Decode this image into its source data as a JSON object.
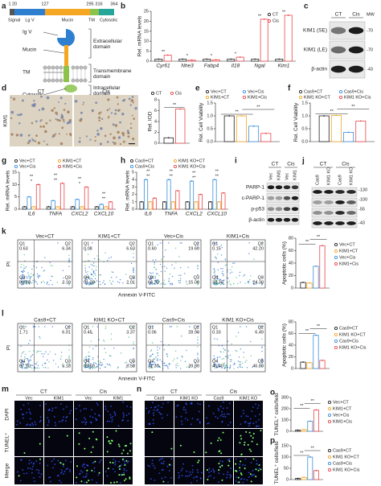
{
  "panels": {
    "a": {
      "label": "a",
      "positions": [
        1,
        20,
        127,
        295,
        316,
        364
      ],
      "segments": [
        "Signal",
        "Lg V",
        "Mucin",
        "TM",
        "Cytosolic"
      ],
      "parts": [
        "Ig V",
        "Mucin",
        "TM",
        "Cytosolic"
      ],
      "domains": [
        "Extracellular domain",
        "Transmembrane domain",
        "Intracellular domain"
      ]
    },
    "b": {
      "label": "b",
      "type": "bar",
      "ylabel": "Rel. mRNA levels",
      "categories": [
        "Cyr61",
        "Nhe3",
        "Fabp4",
        "Il18",
        "Ngal",
        "Kim1"
      ],
      "series": [
        {
          "name": "CT",
          "color": "#222222",
          "values": [
            1,
            1,
            1,
            1,
            1,
            1
          ]
        },
        {
          "name": "Cis",
          "color": "#e8474b",
          "values": [
            3,
            0.5,
            0.7,
            2,
            21,
            23
          ]
        }
      ],
      "ylim": [
        0,
        25
      ],
      "yticks": [
        0,
        5,
        10,
        15,
        20,
        25
      ],
      "annotations": [
        "**",
        "*",
        "*",
        "*",
        "**",
        "**"
      ]
    },
    "c": {
      "label": "c",
      "groups": [
        "CT",
        "Cis"
      ],
      "mw_title": "MW",
      "rows": [
        "KIM1 (SE)",
        "KIM1 (LE)",
        "β-actin"
      ],
      "mw": [
        "-70",
        "-70",
        "-43"
      ]
    },
    "d": {
      "label": "d",
      "images": [
        "CT",
        "Cis"
      ],
      "stain": "KIM1",
      "type": "bar",
      "ylabel": "Rel. IOD",
      "series": [
        {
          "name": "CT",
          "color": "#222222",
          "values": [
            1
          ]
        },
        {
          "name": "Cis",
          "color": "#e8474b",
          "values": [
            6.3
          ]
        }
      ],
      "ylim": [
        0,
        8
      ],
      "yticks": [
        0,
        2,
        4,
        6,
        8
      ],
      "annotations": [
        "**"
      ]
    },
    "e": {
      "label": "e",
      "type": "bar",
      "ylabel": "Rel. Cell Viability",
      "series": [
        {
          "name": "Vec+CT",
          "color": "#222222",
          "values": [
            1.0
          ]
        },
        {
          "name": "KIM1+CT",
          "color": "#f5a623",
          "values": [
            1.0
          ]
        },
        {
          "name": "Vec+Cis",
          "color": "#3b8fd9",
          "values": [
            0.6
          ]
        },
        {
          "name": "KIM1+Cis",
          "color": "#e8474b",
          "values": [
            0.32
          ]
        }
      ],
      "ylim": [
        0,
        1.5
      ],
      "yticks": [
        {
          "value": 0,
          "label": "0.0"
        },
        0.5,
        {
          "value": 1,
          "label": "1.0"
        },
        1.5
      ],
      "annotations": [
        "**",
        "**"
      ]
    },
    "f": {
      "label": "f",
      "type": "bar",
      "ylabel": "Rel. Cell Viability",
      "series": [
        {
          "name": "Cas9+CT",
          "color": "#222222",
          "values": [
            1.0
          ]
        },
        {
          "name": "KIM1 KO+CT",
          "color": "#f5a623",
          "values": [
            1.02
          ]
        },
        {
          "name": "Cas9+Cis",
          "color": "#3b8fd9",
          "values": [
            0.36
          ]
        },
        {
          "name": "KIM1 KO+Cis",
          "color": "#e8474b",
          "values": [
            0.8
          ]
        }
      ],
      "ylim": [
        0,
        1.5
      ],
      "yticks": [
        {
          "value": 0,
          "label": "0.0"
        },
        0.5,
        {
          "value": 1,
          "label": "1.0"
        },
        1.5
      ],
      "annotations": [
        "**",
        "**"
      ]
    },
    "g": {
      "label": "g",
      "type": "bar",
      "ylabel": "Rel. mRNA levels",
      "categories": [
        "IL6",
        "TNFA",
        "CXCL2",
        "CXCL10"
      ],
      "series": [
        {
          "name": "Vec+CT",
          "color": "#222222",
          "values": [
            1,
            1,
            1,
            1
          ]
        },
        {
          "name": "Vec+Cis",
          "color": "#3b8fd9",
          "values": [
            5,
            3.5,
            4,
            2
          ]
        },
        {
          "name": "KIM1+CT",
          "color": "#f5a623",
          "values": [
            1,
            1,
            1,
            1
          ]
        },
        {
          "name": "KIM1+Cis",
          "color": "#e8474b",
          "values": [
            10,
            10.5,
            9,
            3
          ]
        }
      ],
      "ylim": [
        0,
        15
      ],
      "yticks": [
        0,
        5,
        10,
        15
      ],
      "annotations": [
        "*",
        "**",
        "**",
        "**",
        "*",
        "**",
        "**",
        "**"
      ]
    },
    "h": {
      "label": "h",
      "type": "bar",
      "ylabel": "Rel. mRNA levels",
      "categories": [
        "IL6",
        "TNFA",
        "CXCL2",
        "CXCL10"
      ],
      "series": [
        {
          "name": "Cas9+CT",
          "color": "#222222",
          "values": [
            1,
            1,
            1,
            1
          ]
        },
        {
          "name": "Cas9+Cis",
          "color": "#3b8fd9",
          "values": [
            4,
            4,
            3.8,
            4
          ]
        },
        {
          "name": "KIM1 KO+CT",
          "color": "#f5a623",
          "values": [
            1,
            1,
            1,
            1
          ]
        },
        {
          "name": "KIM1 KO+Cis",
          "color": "#e8474b",
          "values": [
            1.5,
            2.5,
            2,
            2.2
          ]
        }
      ],
      "ylim": [
        0,
        5
      ],
      "yticks": [
        0,
        1,
        2,
        3,
        4,
        5
      ],
      "annotations": [
        "**",
        "**",
        "**",
        "**",
        "**",
        "**",
        "**",
        "**"
      ]
    },
    "i": {
      "label": "i",
      "groups": [
        "CT",
        "Cis"
      ],
      "lanes": [
        "Vec",
        "KIM1",
        "Vec",
        "KIM1"
      ],
      "rows": [
        "PARP-1",
        "c-PARP-1",
        "p-p53",
        "β-actin"
      ]
    },
    "j": {
      "label": "j",
      "groups": [
        "CT",
        "Cis"
      ],
      "lanes": [
        "Cas9",
        "KIM1 KO",
        "Cas9",
        "KIM1 KO"
      ],
      "mw": [
        "-130",
        "-100",
        "-55",
        "-43"
      ]
    },
    "k": {
      "label": "k",
      "ylabel": "PI",
      "xlabel": "Annexin V-FITC",
      "plots": [
        {
          "title": "Vec+CT",
          "quadrants": [
            {
              "name": "Q1",
              "value": "0.63"
            },
            {
              "name": "Q2",
              "value": "6.34"
            },
            {
              "name": "Q4",
              "value": "89.90"
            },
            {
              "name": "Q3",
              "value": "3.10"
            }
          ]
        },
        {
          "title": "KIM1+CT",
          "quadrants": [
            {
              "name": "Q1",
              "value": "0.08"
            },
            {
              "name": "Q2",
              "value": "6.63"
            },
            {
              "name": "Q4",
              "value": "91.28"
            },
            {
              "name": "Q3",
              "value": "2.01"
            }
          ]
        },
        {
          "title": "Vec+Cis",
          "quadrants": [
            {
              "name": "Q1",
              "value": "0.60"
            },
            {
              "name": "Q2",
              "value": "19.60"
            },
            {
              "name": "Q4",
              "value": "64.70"
            },
            {
              "name": "Q3",
              "value": "15.00"
            }
          ]
        },
        {
          "title": "KIM1+Cis",
          "quadrants": [
            {
              "name": "Q1",
              "value": "0.15"
            },
            {
              "name": "Q2",
              "value": "42.20"
            },
            {
              "name": "Q4",
              "value": "33.30"
            },
            {
              "name": "Q3",
              "value": "24.30"
            }
          ]
        }
      ],
      "chart": {
        "type": "bar",
        "ylabel": "Apoptotic cells (%)",
        "series": [
          {
            "name": "Vec+CT",
            "color": "#222222",
            "values": [
              9
            ]
          },
          {
            "name": "KIM1+CT",
            "color": "#f5a623",
            "values": [
              8
            ]
          },
          {
            "name": "Vec+Cis",
            "color": "#3b8fd9",
            "values": [
              35
            ]
          },
          {
            "name": "KIM1+Cis",
            "color": "#e8474b",
            "values": [
              68
            ]
          }
        ],
        "ylim": [
          0,
          80
        ],
        "yticks": [
          0,
          20,
          40,
          60,
          80
        ],
        "annotations": [
          "**",
          "**"
        ]
      }
    },
    "l": {
      "label": "l",
      "ylabel": "PI",
      "xlabel": "Annexin V-FITC",
      "plots": [
        {
          "title": "Cas9+CT",
          "quadrants": [
            {
              "name": "Q1",
              "value": "1.71"
            },
            {
              "name": "Q2",
              "value": "6.01"
            },
            {
              "name": "Q4",
              "value": "87.10"
            },
            {
              "name": "Q3",
              "value": "5.18"
            }
          ]
        },
        {
          "title": "KIM1 KO+CT",
          "quadrants": [
            {
              "name": "Q1",
              "value": "0.45"
            },
            {
              "name": "Q2",
              "value": "3.37"
            },
            {
              "name": "Q4",
              "value": "89.60"
            },
            {
              "name": "Q3",
              "value": "6.58"
            }
          ]
        },
        {
          "title": "Cas9+Cis",
          "quadrants": [
            {
              "name": "Q1",
              "value": "0.06"
            },
            {
              "name": "Q2",
              "value": "28.90"
            },
            {
              "name": "Q4",
              "value": "31.30"
            },
            {
              "name": "Q3",
              "value": "39.80"
            }
          ]
        },
        {
          "title": "KIM1 KO+Cis",
          "quadrants": [
            {
              "name": "Q1",
              "value": "0.33"
            },
            {
              "name": "Q2",
              "value": "6.49"
            },
            {
              "name": "Q4",
              "value": "46.40"
            },
            {
              "name": "Q3",
              "value": "46.80"
            }
          ]
        }
      ],
      "chart": {
        "type": "bar",
        "ylabel": "Apoptotic cells (%)",
        "series": [
          {
            "name": "Cas9+CT",
            "color": "#222222",
            "values": [
              11
            ]
          },
          {
            "name": "KIM1 KO+CT",
            "color": "#f5a623",
            "values": [
              10
            ]
          },
          {
            "name": "Cas9+Cis",
            "color": "#3b8fd9",
            "values": [
              57
            ]
          },
          {
            "name": "KIM1 KO+Cis",
            "color": "#e8474b",
            "values": [
              14
            ]
          }
        ],
        "ylim": [
          0,
          80
        ],
        "yticks": [
          0,
          20,
          40,
          60,
          80
        ],
        "annotations": [
          "**",
          "**"
        ]
      }
    },
    "m": {
      "label": "m",
      "groups": [
        "CT",
        "Cis"
      ],
      "columns": [
        "Vec",
        "KIM1",
        "Vec",
        "KIM1"
      ],
      "rows": [
        "DAPI",
        "TUNEL⁺",
        "Merge"
      ]
    },
    "n": {
      "label": "n",
      "groups": [
        "CT",
        "Cis"
      ],
      "columns": [
        "Cas9",
        "KIM1 KO",
        "Cas9",
        "KIM1 KO"
      ]
    },
    "o": {
      "label": "o",
      "type": "bar",
      "ylabel": "TUNEL⁺ cells/field",
      "series": [
        {
          "name": "Vec+CT",
          "color": "#222222",
          "values": [
            10
          ]
        },
        {
          "name": "KIM1+CT",
          "color": "#f5a623",
          "values": [
            15
          ]
        },
        {
          "name": "Vec+Cis",
          "color": "#3b8fd9",
          "values": [
            90
          ]
        },
        {
          "name": "KIM1+Cis",
          "color": "#e8474b",
          "values": [
            190
          ]
        }
      ],
      "ylim": [
        0,
        300
      ],
      "yticks": [
        0,
        100,
        200,
        300
      ],
      "annotations": [
        "**",
        "**"
      ]
    },
    "p": {
      "label": "p",
      "type": "bar",
      "ylabel": "TUNEL⁺ cells/field",
      "series": [
        {
          "name": "Cas9+CT",
          "color": "#222222",
          "values": [
            5
          ]
        },
        {
          "name": "KIM1 KO+CT",
          "color": "#f5a623",
          "values": [
            10
          ]
        },
        {
          "name": "Cas9+Cis",
          "color": "#3b8fd9",
          "values": [
            100
          ]
        },
        {
          "name": "KIM1 KO+Cis",
          "color": "#e8474b",
          "values": [
            40
          ]
        }
      ],
      "ylim": [
        0,
        150
      ],
      "yticks": [
        0,
        50,
        100,
        150
      ],
      "annotations": [
        "**",
        "**"
      ]
    }
  }
}
